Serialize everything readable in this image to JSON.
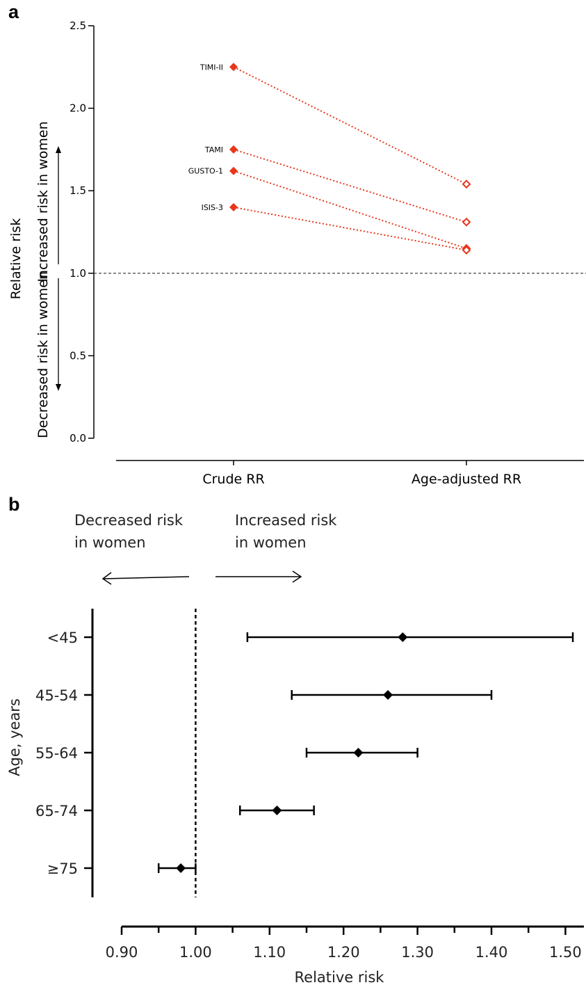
{
  "panels": {
    "a": {
      "letter": "a"
    },
    "b": {
      "letter": "b"
    }
  },
  "colors": {
    "trend": "#e8361a",
    "ink": "#000000",
    "refline": "#555555"
  },
  "chart_data": [
    {
      "type": "line",
      "panel": "a",
      "categories": [
        "Crude RR",
        "Age-adjusted RR"
      ],
      "ylabel": "Relative risk",
      "ylim": [
        0,
        2.5
      ],
      "yticks": [
        "0.0",
        "0.5",
        "1.0",
        "1.5",
        "2.0",
        "2.5"
      ],
      "reference_line": 1.0,
      "direction_labels": {
        "up": "Increased risk in women",
        "down": "Decreased risk in women"
      },
      "series": [
        {
          "name": "TIMI-II",
          "values": [
            2.25,
            1.54
          ]
        },
        {
          "name": "TAMI",
          "values": [
            1.75,
            1.31
          ]
        },
        {
          "name": "GUSTO-1",
          "values": [
            1.62,
            1.15
          ]
        },
        {
          "name": "ISIS-3",
          "values": [
            1.4,
            1.14
          ]
        }
      ],
      "markers": {
        "crude": "filled-diamond",
        "age_adjusted": "open-diamond"
      }
    },
    {
      "type": "scatter",
      "panel": "b",
      "xlabel": "Relative risk",
      "ylabel": "Age, years",
      "xlim": [
        0.9,
        1.52
      ],
      "xticks": [
        "0.90",
        "1.00",
        "1.10",
        "1.20",
        "1.30",
        "1.40",
        "1.50"
      ],
      "reference_line": 1.0,
      "direction_labels": {
        "left": [
          "Decreased risk",
          "in women"
        ],
        "right": [
          "Increased risk",
          "in women"
        ]
      },
      "rows": [
        {
          "label": "<45",
          "estimate": 1.28,
          "ci_low": 1.07,
          "ci_high": 1.51
        },
        {
          "label": "45-54",
          "estimate": 1.26,
          "ci_low": 1.13,
          "ci_high": 1.4
        },
        {
          "label": "55-64",
          "estimate": 1.22,
          "ci_low": 1.15,
          "ci_high": 1.3
        },
        {
          "label": "65-74",
          "estimate": 1.11,
          "ci_low": 1.06,
          "ci_high": 1.16
        },
        {
          "label": "≥75",
          "estimate": 0.98,
          "ci_low": 0.95,
          "ci_high": 1.0
        }
      ]
    }
  ]
}
